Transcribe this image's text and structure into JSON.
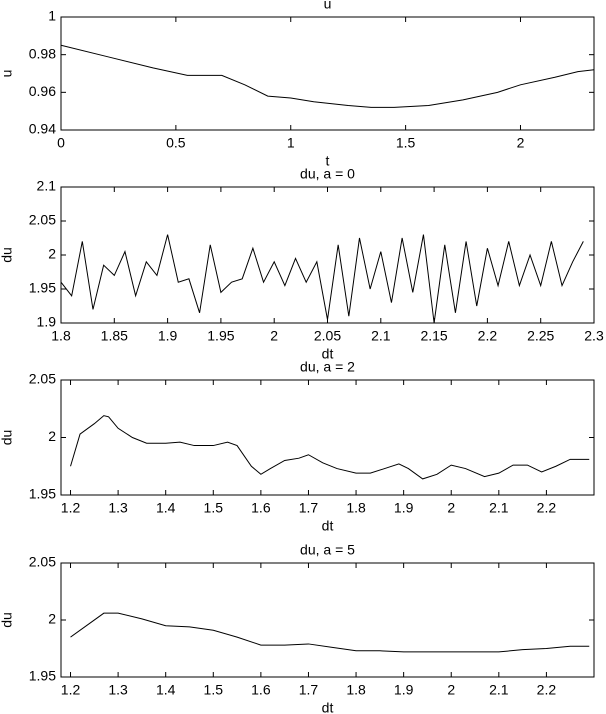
{
  "chart_data": [
    {
      "type": "line",
      "title": "u",
      "xlabel": "t",
      "ylabel": "u",
      "color": "#000000",
      "xlim": [
        0,
        2.32
      ],
      "ylim": [
        0.94,
        1
      ],
      "xticks": [
        0,
        0.5,
        1,
        1.5,
        2
      ],
      "yticks": [
        0.94,
        0.96,
        0.98,
        1
      ],
      "x": [
        0,
        0.2,
        0.4,
        0.55,
        0.7,
        0.8,
        0.9,
        1.0,
        1.1,
        1.25,
        1.35,
        1.45,
        1.6,
        1.75,
        1.9,
        2.0,
        2.15,
        2.25,
        2.32
      ],
      "values": [
        0.985,
        0.979,
        0.973,
        0.969,
        0.969,
        0.964,
        0.958,
        0.957,
        0.955,
        0.953,
        0.952,
        0.952,
        0.953,
        0.956,
        0.96,
        0.964,
        0.968,
        0.971,
        0.972
      ]
    },
    {
      "type": "line",
      "title": "du, a = 0",
      "xlabel": "dt",
      "ylabel": "du",
      "color": "#000000",
      "xlim": [
        1.8,
        2.3
      ],
      "ylim": [
        1.9,
        2.1
      ],
      "xticks": [
        1.8,
        1.85,
        1.9,
        1.95,
        2,
        2.05,
        2.1,
        2.15,
        2.2,
        2.25,
        2.3
      ],
      "yticks": [
        1.9,
        1.95,
        2,
        2.05,
        2.1
      ],
      "x": [
        1.8,
        1.81,
        1.82,
        1.83,
        1.84,
        1.85,
        1.86,
        1.87,
        1.88,
        1.89,
        1.9,
        1.91,
        1.92,
        1.93,
        1.94,
        1.95,
        1.96,
        1.97,
        1.98,
        1.99,
        2.0,
        2.01,
        2.02,
        2.03,
        2.04,
        2.05,
        2.06,
        2.07,
        2.08,
        2.09,
        2.1,
        2.11,
        2.12,
        2.13,
        2.14,
        2.15,
        2.16,
        2.17,
        2.18,
        2.19,
        2.2,
        2.21,
        2.22,
        2.23,
        2.24,
        2.25,
        2.26,
        2.27,
        2.28,
        2.29
      ],
      "values": [
        1.96,
        1.94,
        2.02,
        1.92,
        1.985,
        1.97,
        2.005,
        1.94,
        1.99,
        1.97,
        2.03,
        1.96,
        1.965,
        1.915,
        2.015,
        1.945,
        1.96,
        1.965,
        2.01,
        1.96,
        1.99,
        1.955,
        1.995,
        1.96,
        1.99,
        1.905,
        2.015,
        1.91,
        2.025,
        1.95,
        2.005,
        1.93,
        2.025,
        1.945,
        2.03,
        1.9,
        2.015,
        1.915,
        2.02,
        1.925,
        2.01,
        1.955,
        2.02,
        1.955,
        2.0,
        1.955,
        2.02,
        1.955,
        1.99,
        2.02
      ]
    },
    {
      "type": "line",
      "title": "du, a = 2",
      "xlabel": "dt",
      "ylabel": "du",
      "color": "#000000",
      "xlim": [
        1.18,
        2.3
      ],
      "ylim": [
        1.95,
        2.05
      ],
      "xticks": [
        1.2,
        1.3,
        1.4,
        1.5,
        1.6,
        1.7,
        1.8,
        1.9,
        2,
        2.1,
        2.2
      ],
      "yticks": [
        1.95,
        2,
        2.05
      ],
      "x": [
        1.2,
        1.22,
        1.25,
        1.27,
        1.28,
        1.3,
        1.33,
        1.36,
        1.4,
        1.43,
        1.46,
        1.5,
        1.53,
        1.55,
        1.58,
        1.6,
        1.62,
        1.65,
        1.68,
        1.7,
        1.73,
        1.76,
        1.8,
        1.83,
        1.86,
        1.89,
        1.91,
        1.94,
        1.97,
        2.0,
        2.03,
        2.07,
        2.1,
        2.13,
        2.16,
        2.19,
        2.22,
        2.25,
        2.29
      ],
      "values": [
        1.975,
        2.003,
        2.012,
        2.019,
        2.018,
        2.008,
        2.0,
        1.995,
        1.995,
        1.996,
        1.993,
        1.993,
        1.996,
        1.993,
        1.975,
        1.968,
        1.973,
        1.98,
        1.982,
        1.985,
        1.978,
        1.973,
        1.969,
        1.969,
        1.973,
        1.977,
        1.973,
        1.964,
        1.968,
        1.976,
        1.973,
        1.966,
        1.969,
        1.976,
        1.976,
        1.97,
        1.975,
        1.981,
        1.981
      ]
    },
    {
      "type": "line",
      "title": "du, a = 5",
      "xlabel": "dt",
      "ylabel": "du",
      "color": "#000000",
      "xlim": [
        1.18,
        2.3
      ],
      "ylim": [
        1.95,
        2.05
      ],
      "xticks": [
        1.2,
        1.3,
        1.4,
        1.5,
        1.6,
        1.7,
        1.8,
        1.9,
        2,
        2.1,
        2.2
      ],
      "yticks": [
        1.95,
        2,
        2.05
      ],
      "x": [
        1.2,
        1.24,
        1.27,
        1.3,
        1.35,
        1.4,
        1.45,
        1.5,
        1.55,
        1.6,
        1.65,
        1.7,
        1.75,
        1.8,
        1.85,
        1.9,
        1.95,
        2.0,
        2.05,
        2.1,
        2.15,
        2.2,
        2.25,
        2.29
      ],
      "values": [
        1.985,
        1.997,
        2.006,
        2.006,
        2.001,
        1.995,
        1.994,
        1.991,
        1.985,
        1.978,
        1.978,
        1.979,
        1.976,
        1.973,
        1.973,
        1.972,
        1.972,
        1.972,
        1.972,
        1.972,
        1.974,
        1.975,
        1.977,
        1.977
      ]
    }
  ]
}
